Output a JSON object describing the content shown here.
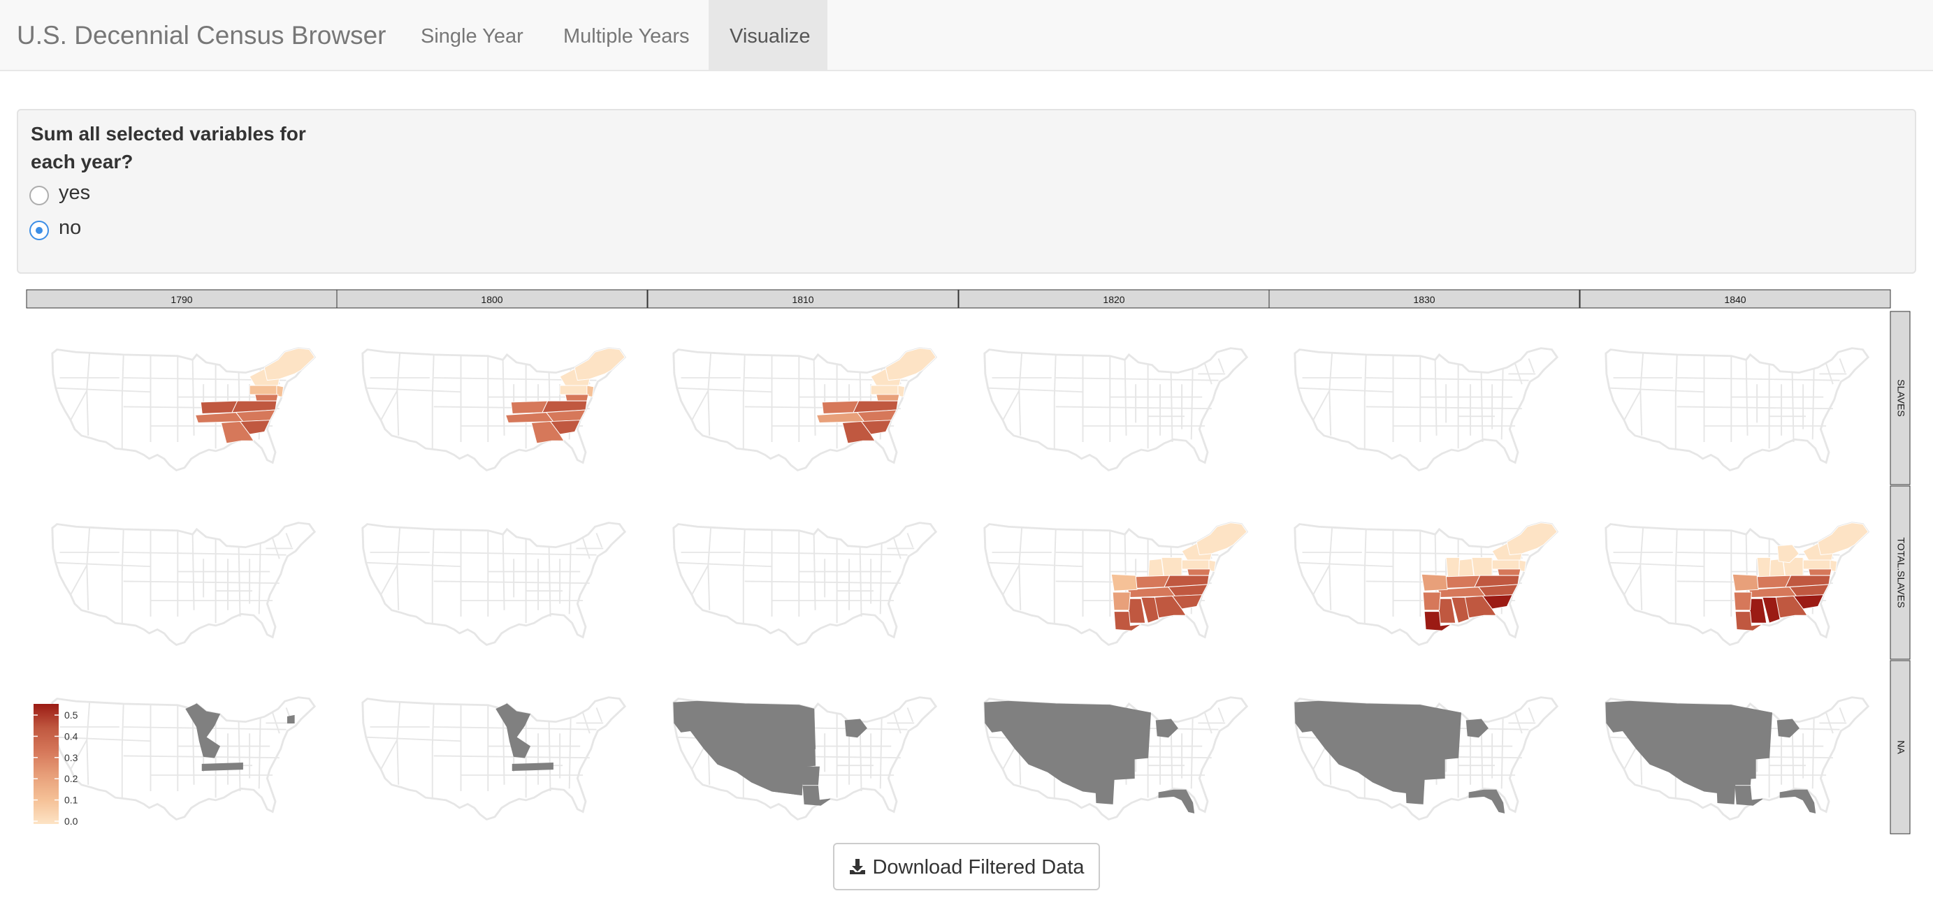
{
  "navbar": {
    "brand": "U.S. Decennial Census Browser",
    "tabs": [
      {
        "label": "Single Year",
        "active": false
      },
      {
        "label": "Multiple Years",
        "active": false
      },
      {
        "label": "Visualize",
        "active": true
      }
    ]
  },
  "sum_option": {
    "label": "Sum all selected variables for each year?",
    "options": [
      {
        "label": "yes",
        "checked": false
      },
      {
        "label": "no",
        "checked": true
      }
    ]
  },
  "chart_data": {
    "type": "heatmap",
    "columns": [
      "1790",
      "1800",
      "1810",
      "1820",
      "1830",
      "1840"
    ],
    "rows": [
      "SLAVES",
      "TOTAL.SLAVES",
      "NA"
    ],
    "legend": {
      "ticks": [
        "0.0",
        "0.1",
        "0.2",
        "0.3",
        "0.4",
        "0.5"
      ],
      "colors": [
        "#fde3c5",
        "#f5c197",
        "#e8a07a",
        "#d6785a",
        "#c05840",
        "#9b1b14"
      ],
      "na_color": "#808080"
    }
  },
  "download": {
    "label": "Download Filtered Data",
    "icon": "download-icon"
  }
}
